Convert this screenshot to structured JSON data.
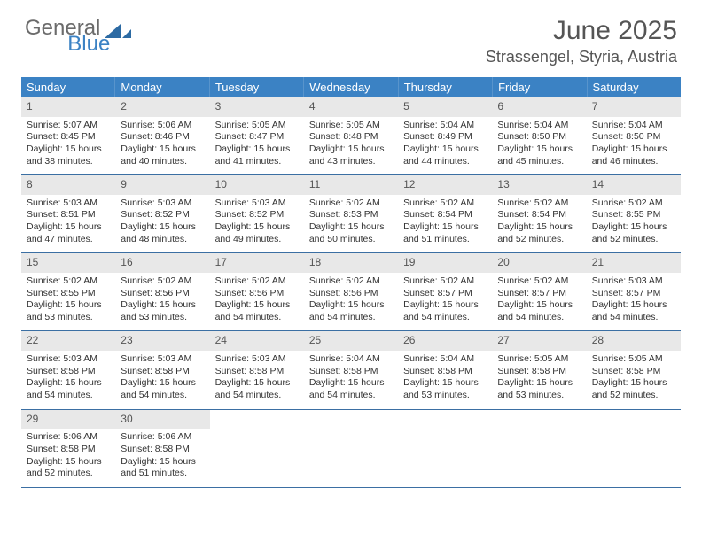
{
  "logo": {
    "general": "General",
    "blue": "Blue"
  },
  "title": "June 2025",
  "location": "Strassengel, Styria, Austria",
  "day_names": [
    "Sunday",
    "Monday",
    "Tuesday",
    "Wednesday",
    "Thursday",
    "Friday",
    "Saturday"
  ],
  "colors": {
    "header_bg": "#3b82c4",
    "header_text": "#ffffff",
    "daynum_bg": "#e8e8e8",
    "row_border": "#3b6fa3",
    "text": "#333333",
    "title_text": "#555555"
  },
  "weeks": [
    [
      {
        "n": "1",
        "sr": "Sunrise: 5:07 AM",
        "ss": "Sunset: 8:45 PM",
        "d1": "Daylight: 15 hours",
        "d2": "and 38 minutes."
      },
      {
        "n": "2",
        "sr": "Sunrise: 5:06 AM",
        "ss": "Sunset: 8:46 PM",
        "d1": "Daylight: 15 hours",
        "d2": "and 40 minutes."
      },
      {
        "n": "3",
        "sr": "Sunrise: 5:05 AM",
        "ss": "Sunset: 8:47 PM",
        "d1": "Daylight: 15 hours",
        "d2": "and 41 minutes."
      },
      {
        "n": "4",
        "sr": "Sunrise: 5:05 AM",
        "ss": "Sunset: 8:48 PM",
        "d1": "Daylight: 15 hours",
        "d2": "and 43 minutes."
      },
      {
        "n": "5",
        "sr": "Sunrise: 5:04 AM",
        "ss": "Sunset: 8:49 PM",
        "d1": "Daylight: 15 hours",
        "d2": "and 44 minutes."
      },
      {
        "n": "6",
        "sr": "Sunrise: 5:04 AM",
        "ss": "Sunset: 8:50 PM",
        "d1": "Daylight: 15 hours",
        "d2": "and 45 minutes."
      },
      {
        "n": "7",
        "sr": "Sunrise: 5:04 AM",
        "ss": "Sunset: 8:50 PM",
        "d1": "Daylight: 15 hours",
        "d2": "and 46 minutes."
      }
    ],
    [
      {
        "n": "8",
        "sr": "Sunrise: 5:03 AM",
        "ss": "Sunset: 8:51 PM",
        "d1": "Daylight: 15 hours",
        "d2": "and 47 minutes."
      },
      {
        "n": "9",
        "sr": "Sunrise: 5:03 AM",
        "ss": "Sunset: 8:52 PM",
        "d1": "Daylight: 15 hours",
        "d2": "and 48 minutes."
      },
      {
        "n": "10",
        "sr": "Sunrise: 5:03 AM",
        "ss": "Sunset: 8:52 PM",
        "d1": "Daylight: 15 hours",
        "d2": "and 49 minutes."
      },
      {
        "n": "11",
        "sr": "Sunrise: 5:02 AM",
        "ss": "Sunset: 8:53 PM",
        "d1": "Daylight: 15 hours",
        "d2": "and 50 minutes."
      },
      {
        "n": "12",
        "sr": "Sunrise: 5:02 AM",
        "ss": "Sunset: 8:54 PM",
        "d1": "Daylight: 15 hours",
        "d2": "and 51 minutes."
      },
      {
        "n": "13",
        "sr": "Sunrise: 5:02 AM",
        "ss": "Sunset: 8:54 PM",
        "d1": "Daylight: 15 hours",
        "d2": "and 52 minutes."
      },
      {
        "n": "14",
        "sr": "Sunrise: 5:02 AM",
        "ss": "Sunset: 8:55 PM",
        "d1": "Daylight: 15 hours",
        "d2": "and 52 minutes."
      }
    ],
    [
      {
        "n": "15",
        "sr": "Sunrise: 5:02 AM",
        "ss": "Sunset: 8:55 PM",
        "d1": "Daylight: 15 hours",
        "d2": "and 53 minutes."
      },
      {
        "n": "16",
        "sr": "Sunrise: 5:02 AM",
        "ss": "Sunset: 8:56 PM",
        "d1": "Daylight: 15 hours",
        "d2": "and 53 minutes."
      },
      {
        "n": "17",
        "sr": "Sunrise: 5:02 AM",
        "ss": "Sunset: 8:56 PM",
        "d1": "Daylight: 15 hours",
        "d2": "and 54 minutes."
      },
      {
        "n": "18",
        "sr": "Sunrise: 5:02 AM",
        "ss": "Sunset: 8:56 PM",
        "d1": "Daylight: 15 hours",
        "d2": "and 54 minutes."
      },
      {
        "n": "19",
        "sr": "Sunrise: 5:02 AM",
        "ss": "Sunset: 8:57 PM",
        "d1": "Daylight: 15 hours",
        "d2": "and 54 minutes."
      },
      {
        "n": "20",
        "sr": "Sunrise: 5:02 AM",
        "ss": "Sunset: 8:57 PM",
        "d1": "Daylight: 15 hours",
        "d2": "and 54 minutes."
      },
      {
        "n": "21",
        "sr": "Sunrise: 5:03 AM",
        "ss": "Sunset: 8:57 PM",
        "d1": "Daylight: 15 hours",
        "d2": "and 54 minutes."
      }
    ],
    [
      {
        "n": "22",
        "sr": "Sunrise: 5:03 AM",
        "ss": "Sunset: 8:58 PM",
        "d1": "Daylight: 15 hours",
        "d2": "and 54 minutes."
      },
      {
        "n": "23",
        "sr": "Sunrise: 5:03 AM",
        "ss": "Sunset: 8:58 PM",
        "d1": "Daylight: 15 hours",
        "d2": "and 54 minutes."
      },
      {
        "n": "24",
        "sr": "Sunrise: 5:03 AM",
        "ss": "Sunset: 8:58 PM",
        "d1": "Daylight: 15 hours",
        "d2": "and 54 minutes."
      },
      {
        "n": "25",
        "sr": "Sunrise: 5:04 AM",
        "ss": "Sunset: 8:58 PM",
        "d1": "Daylight: 15 hours",
        "d2": "and 54 minutes."
      },
      {
        "n": "26",
        "sr": "Sunrise: 5:04 AM",
        "ss": "Sunset: 8:58 PM",
        "d1": "Daylight: 15 hours",
        "d2": "and 53 minutes."
      },
      {
        "n": "27",
        "sr": "Sunrise: 5:05 AM",
        "ss": "Sunset: 8:58 PM",
        "d1": "Daylight: 15 hours",
        "d2": "and 53 minutes."
      },
      {
        "n": "28",
        "sr": "Sunrise: 5:05 AM",
        "ss": "Sunset: 8:58 PM",
        "d1": "Daylight: 15 hours",
        "d2": "and 52 minutes."
      }
    ],
    [
      {
        "n": "29",
        "sr": "Sunrise: 5:06 AM",
        "ss": "Sunset: 8:58 PM",
        "d1": "Daylight: 15 hours",
        "d2": "and 52 minutes."
      },
      {
        "n": "30",
        "sr": "Sunrise: 5:06 AM",
        "ss": "Sunset: 8:58 PM",
        "d1": "Daylight: 15 hours",
        "d2": "and 51 minutes."
      },
      null,
      null,
      null,
      null,
      null
    ]
  ]
}
